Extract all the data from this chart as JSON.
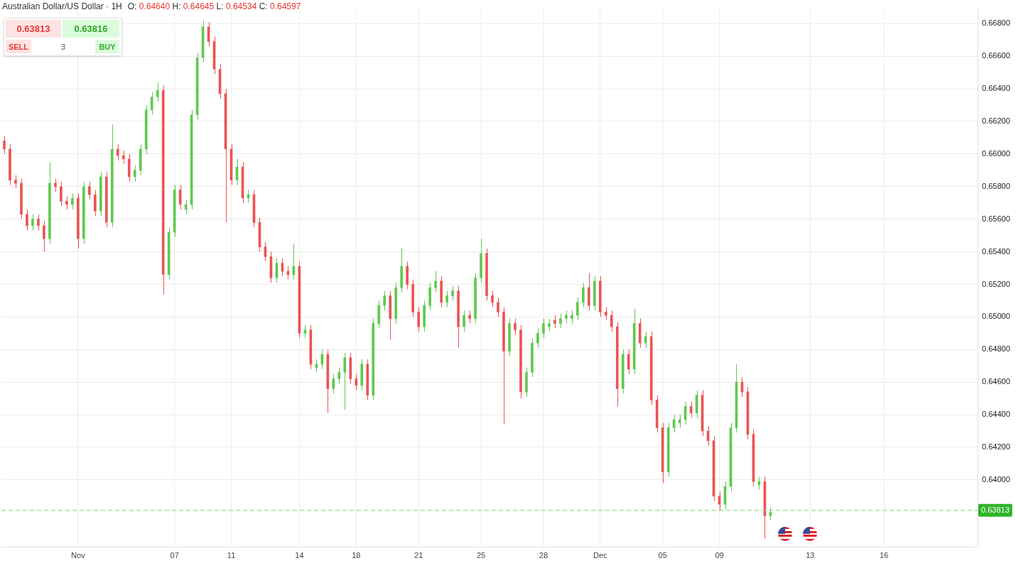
{
  "chart_data": {
    "type": "candlestick",
    "title": "Australian Dollar/US Dollar · 1H",
    "subtitle": "O: 0.64640 H: 0.64645 L: 0.64534 C: 0.64597",
    "annotations": [
      "0.63813",
      "0.63816",
      "SELL",
      "3",
      "BUY"
    ],
    "categories": [
      null,
      null,
      null,
      null,
      null,
      null,
      null,
      null,
      null,
      null,
      null,
      null,
      null,
      "Nov",
      null,
      null,
      null,
      null,
      null,
      null,
      null,
      null,
      null,
      null,
      null,
      null,
      null,
      null,
      null,
      null,
      "07",
      null,
      null,
      null,
      null,
      null,
      null,
      null,
      null,
      null,
      "11",
      null,
      null,
      null,
      null,
      null,
      null,
      null,
      null,
      null,
      null,
      null,
      "14",
      null,
      null,
      null,
      null,
      null,
      null,
      null,
      null,
      null,
      "18",
      null,
      null,
      null,
      null,
      null,
      null,
      null,
      null,
      null,
      null,
      "21",
      null,
      null,
      null,
      null,
      null,
      null,
      null,
      null,
      null,
      null,
      "25",
      null,
      null,
      null,
      null,
      null,
      null,
      null,
      null,
      null,
      null,
      "28",
      null,
      null,
      null,
      null,
      null,
      null,
      null,
      null,
      null,
      "Dec",
      null,
      null,
      null,
      null,
      null,
      null,
      null,
      null,
      null,
      null,
      "05",
      null,
      null,
      null,
      null,
      null,
      null,
      null,
      null,
      null,
      "09",
      null,
      null,
      null,
      null,
      null,
      null,
      null,
      null,
      null,
      null,
      null,
      null,
      null,
      null,
      null,
      "13",
      null,
      null,
      null,
      null,
      null,
      null,
      null,
      null,
      null,
      null,
      null,
      null,
      "16",
      null,
      null,
      null,
      null,
      null,
      null,
      null,
      null,
      null,
      null,
      null,
      null,
      null,
      null,
      null,
      null
    ],
    "ohlc": [
      [
        0.6608,
        0.6611,
        0.66,
        0.6603
      ],
      [
        0.6603,
        0.6606,
        0.6581,
        0.6584
      ],
      [
        0.6584,
        0.6587,
        0.6579,
        0.6582
      ],
      [
        0.6582,
        0.6585,
        0.656,
        0.6563
      ],
      [
        0.6563,
        0.6566,
        0.6553,
        0.6556
      ],
      [
        0.6556,
        0.6563,
        0.6553,
        0.656
      ],
      [
        0.656,
        0.6563,
        0.6553,
        0.6556
      ],
      [
        0.6556,
        0.6559,
        0.654,
        0.6548
      ],
      [
        0.6548,
        0.6595,
        0.6545,
        0.6582
      ],
      [
        0.6582,
        0.6585,
        0.6577,
        0.658
      ],
      [
        0.658,
        0.6583,
        0.6568,
        0.6571
      ],
      [
        0.6571,
        0.6574,
        0.6566,
        0.6569
      ],
      [
        0.6569,
        0.6576,
        0.6566,
        0.6573
      ],
      [
        0.6573,
        0.6576,
        0.6542,
        0.6548
      ],
      [
        0.6548,
        0.6583,
        0.6545,
        0.658
      ],
      [
        0.658,
        0.6583,
        0.6572,
        0.6575
      ],
      [
        0.6575,
        0.6578,
        0.6562,
        0.6565
      ],
      [
        0.6565,
        0.6589,
        0.6562,
        0.6586
      ],
      [
        0.6586,
        0.6589,
        0.6555,
        0.6558
      ],
      [
        0.6558,
        0.6618,
        0.6555,
        0.6603
      ],
      [
        0.6603,
        0.6606,
        0.6596,
        0.6599
      ],
      [
        0.6599,
        0.6602,
        0.6594,
        0.6597
      ],
      [
        0.6597,
        0.66,
        0.6583,
        0.6586
      ],
      [
        0.6586,
        0.6593,
        0.6583,
        0.659
      ],
      [
        0.659,
        0.6606,
        0.6587,
        0.6603
      ],
      [
        0.6603,
        0.663,
        0.66,
        0.6627
      ],
      [
        0.6627,
        0.6638,
        0.6624,
        0.6635
      ],
      [
        0.6635,
        0.6644,
        0.6632,
        0.6639
      ],
      [
        0.6639,
        0.6642,
        0.6514,
        0.6526
      ],
      [
        0.6526,
        0.6555,
        0.6523,
        0.6552
      ],
      [
        0.6552,
        0.6581,
        0.6549,
        0.6578
      ],
      [
        0.6578,
        0.6581,
        0.6566,
        0.6569
      ],
      [
        0.6566,
        0.6572,
        0.6563,
        0.6569
      ],
      [
        0.6569,
        0.6627,
        0.6566,
        0.6624
      ],
      [
        0.6624,
        0.6662,
        0.6621,
        0.6659
      ],
      [
        0.6659,
        0.6682,
        0.6656,
        0.6678
      ],
      [
        0.6678,
        0.6681,
        0.6666,
        0.6669
      ],
      [
        0.6669,
        0.6672,
        0.6649,
        0.6652
      ],
      [
        0.6652,
        0.6655,
        0.6634,
        0.6637
      ],
      [
        0.6637,
        0.664,
        0.6558,
        0.6603
      ],
      [
        0.6603,
        0.6606,
        0.6581,
        0.6584
      ],
      [
        0.6584,
        0.6597,
        0.6581,
        0.6592
      ],
      [
        0.6592,
        0.6595,
        0.657,
        0.6573
      ],
      [
        0.6573,
        0.6578,
        0.657,
        0.6575
      ],
      [
        0.6575,
        0.6578,
        0.6555,
        0.6558
      ],
      [
        0.6558,
        0.6561,
        0.654,
        0.6543
      ],
      [
        0.6543,
        0.6546,
        0.6534,
        0.6537
      ],
      [
        0.6537,
        0.654,
        0.6521,
        0.6524
      ],
      [
        0.6524,
        0.6536,
        0.6521,
        0.6533
      ],
      [
        0.6533,
        0.6536,
        0.6525,
        0.6528
      ],
      [
        0.6528,
        0.6531,
        0.6523,
        0.6526
      ],
      [
        0.6526,
        0.6545,
        0.6523,
        0.6531
      ],
      [
        0.6531,
        0.6534,
        0.6487,
        0.649
      ],
      [
        0.649,
        0.6495,
        0.6487,
        0.6492
      ],
      [
        0.6492,
        0.6495,
        0.6468,
        0.6471
      ],
      [
        0.6469,
        0.6474,
        0.6466,
        0.6471
      ],
      [
        0.6471,
        0.648,
        0.6468,
        0.6477
      ],
      [
        0.6477,
        0.648,
        0.6441,
        0.6456
      ],
      [
        0.6456,
        0.6465,
        0.6453,
        0.6462
      ],
      [
        0.6462,
        0.6469,
        0.6459,
        0.6466
      ],
      [
        0.6466,
        0.6478,
        0.6443,
        0.6475
      ],
      [
        0.6475,
        0.6478,
        0.6459,
        0.6462
      ],
      [
        0.6462,
        0.6465,
        0.6455,
        0.6458
      ],
      [
        0.6458,
        0.6474,
        0.6455,
        0.6471
      ],
      [
        0.6471,
        0.6474,
        0.6449,
        0.6452
      ],
      [
        0.6452,
        0.6499,
        0.6449,
        0.6496
      ],
      [
        0.6496,
        0.651,
        0.6493,
        0.6507
      ],
      [
        0.6507,
        0.6516,
        0.6504,
        0.6513
      ],
      [
        0.6513,
        0.6516,
        0.6486,
        0.6499
      ],
      [
        0.6499,
        0.6521,
        0.6496,
        0.6518
      ],
      [
        0.6518,
        0.6542,
        0.6515,
        0.6531
      ],
      [
        0.6531,
        0.6534,
        0.6517,
        0.652
      ],
      [
        0.652,
        0.6523,
        0.65,
        0.6503
      ],
      [
        0.6503,
        0.6506,
        0.6491,
        0.6494
      ],
      [
        0.6494,
        0.651,
        0.6491,
        0.6507
      ],
      [
        0.6507,
        0.6521,
        0.6504,
        0.6518
      ],
      [
        0.6518,
        0.6528,
        0.6515,
        0.6522
      ],
      [
        0.6522,
        0.6525,
        0.6506,
        0.6509
      ],
      [
        0.6509,
        0.6516,
        0.6506,
        0.6513
      ],
      [
        0.6513,
        0.6519,
        0.651,
        0.6516
      ],
      [
        0.6516,
        0.6519,
        0.6481,
        0.6494
      ],
      [
        0.6494,
        0.6504,
        0.6491,
        0.6501
      ],
      [
        0.6501,
        0.6504,
        0.6496,
        0.6499
      ],
      [
        0.6499,
        0.6527,
        0.6496,
        0.6524
      ],
      [
        0.6524,
        0.6548,
        0.6521,
        0.6539
      ],
      [
        0.6539,
        0.6542,
        0.651,
        0.6513
      ],
      [
        0.6513,
        0.6516,
        0.6506,
        0.6509
      ],
      [
        0.6509,
        0.6512,
        0.65,
        0.6503
      ],
      [
        0.6503,
        0.6506,
        0.6434,
        0.6479
      ],
      [
        0.6479,
        0.6499,
        0.6476,
        0.6496
      ],
      [
        0.6496,
        0.6499,
        0.6489,
        0.6492
      ],
      [
        0.6492,
        0.6495,
        0.645,
        0.6454
      ],
      [
        0.6454,
        0.6469,
        0.6451,
        0.6466
      ],
      [
        0.6466,
        0.6487,
        0.6463,
        0.6484
      ],
      [
        0.6484,
        0.6493,
        0.6481,
        0.649
      ],
      [
        0.649,
        0.6499,
        0.6487,
        0.6496
      ],
      [
        0.6494,
        0.6499,
        0.6491,
        0.6496
      ],
      [
        0.6498,
        0.6501,
        0.6493,
        0.6496
      ],
      [
        0.6496,
        0.6502,
        0.6493,
        0.6499
      ],
      [
        0.6499,
        0.6504,
        0.6496,
        0.6501
      ],
      [
        0.6499,
        0.6504,
        0.6496,
        0.6501
      ],
      [
        0.6501,
        0.6512,
        0.6498,
        0.6509
      ],
      [
        0.6509,
        0.6521,
        0.6506,
        0.6518
      ],
      [
        0.6518,
        0.6527,
        0.6504,
        0.6507
      ],
      [
        0.6507,
        0.6525,
        0.6504,
        0.6522
      ],
      [
        0.6522,
        0.6525,
        0.65,
        0.6503
      ],
      [
        0.6503,
        0.6506,
        0.6498,
        0.6501
      ],
      [
        0.6501,
        0.6504,
        0.6491,
        0.6494
      ],
      [
        0.6494,
        0.6497,
        0.6445,
        0.6456
      ],
      [
        0.6456,
        0.648,
        0.6453,
        0.6477
      ],
      [
        0.6477,
        0.648,
        0.6465,
        0.6468
      ],
      [
        0.6468,
        0.6505,
        0.6465,
        0.6496
      ],
      [
        0.6496,
        0.6499,
        0.6481,
        0.6484
      ],
      [
        0.6484,
        0.6491,
        0.6481,
        0.6488
      ],
      [
        0.6488,
        0.6491,
        0.6446,
        0.6449
      ],
      [
        0.6449,
        0.6452,
        0.6429,
        0.6432
      ],
      [
        0.6432,
        0.6435,
        0.6398,
        0.6405
      ],
      [
        0.6405,
        0.6435,
        0.6402,
        0.6432
      ],
      [
        0.6432,
        0.644,
        0.6429,
        0.6437
      ],
      [
        0.6435,
        0.644,
        0.6432,
        0.6437
      ],
      [
        0.6437,
        0.6448,
        0.6434,
        0.6445
      ],
      [
        0.6445,
        0.6448,
        0.6438,
        0.6441
      ],
      [
        0.6441,
        0.6455,
        0.6438,
        0.6452
      ],
      [
        0.6452,
        0.6455,
        0.6427,
        0.643
      ],
      [
        0.643,
        0.6433,
        0.6421,
        0.6424
      ],
      [
        0.6424,
        0.6427,
        0.6387,
        0.639
      ],
      [
        0.639,
        0.6393,
        0.6381,
        0.6385
      ],
      [
        0.6385,
        0.6399,
        0.6382,
        0.6396
      ],
      [
        0.6396,
        0.6435,
        0.6393,
        0.6432
      ],
      [
        0.6432,
        0.6471,
        0.6429,
        0.646
      ],
      [
        0.646,
        0.6463,
        0.6451,
        0.6454
      ],
      [
        0.6454,
        0.6457,
        0.6425,
        0.6428
      ],
      [
        0.6428,
        0.6431,
        0.6396,
        0.6399
      ],
      [
        0.6397,
        0.6402,
        0.6394,
        0.6399
      ],
      [
        0.6399,
        0.6402,
        0.6364,
        0.6378
      ],
      [
        0.6378,
        0.6383,
        0.6375,
        0.638
      ],
      null,
      null,
      null,
      null,
      null,
      null,
      null,
      null,
      null,
      null,
      null,
      null,
      null,
      null,
      null,
      null,
      null,
      null,
      null,
      null,
      null,
      null,
      null,
      null,
      null,
      null,
      null,
      null,
      null,
      null,
      null,
      null,
      null,
      null,
      null,
      null
    ],
    "colors": [
      "#eb5454",
      "#eb5454",
      "#eb5454",
      "#eb5454",
      "#eb5454",
      "#5fc94f",
      "#eb5454",
      "#eb5454",
      "#5fc94f",
      "#eb5454",
      "#eb5454",
      "#eb5454",
      "#5fc94f",
      "#eb5454",
      "#5fc94f",
      "#eb5454",
      "#eb5454",
      "#5fc94f",
      "#eb5454",
      "#5fc94f",
      "#eb5454",
      "#eb5454",
      "#eb5454",
      "#5fc94f",
      "#5fc94f",
      "#5fc94f",
      "#5fc94f",
      "#5fc94f",
      "#eb5454",
      "#5fc94f",
      "#5fc94f",
      "#eb5454",
      "#5fc94f",
      "#5fc94f",
      "#5fc94f",
      "#5fc94f",
      "#eb5454",
      "#eb5454",
      "#eb5454",
      "#eb5454",
      "#eb5454",
      "#5fc94f",
      "#eb5454",
      "#5fc94f",
      "#eb5454",
      "#eb5454",
      "#eb5454",
      "#eb5454",
      "#5fc94f",
      "#eb5454",
      "#eb5454",
      "#5fc94f",
      "#eb5454",
      "#5fc94f",
      "#eb5454",
      "#5fc94f",
      "#5fc94f",
      "#eb5454",
      "#5fc94f",
      "#5fc94f",
      "#5fc94f",
      "#eb5454",
      "#eb5454",
      "#5fc94f",
      "#eb5454",
      "#5fc94f",
      "#5fc94f",
      "#5fc94f",
      "#eb5454",
      "#5fc94f",
      "#5fc94f",
      "#eb5454",
      "#eb5454",
      "#eb5454",
      "#5fc94f",
      "#5fc94f",
      "#5fc94f",
      "#eb5454",
      "#5fc94f",
      "#5fc94f",
      "#eb5454",
      "#5fc94f",
      "#eb5454",
      "#5fc94f",
      "#5fc94f",
      "#eb5454",
      "#eb5454",
      "#eb5454",
      "#eb5454",
      "#5fc94f",
      "#eb5454",
      "#eb5454",
      "#5fc94f",
      "#5fc94f",
      "#5fc94f",
      "#5fc94f",
      "#5fc94f",
      "#eb5454",
      "#5fc94f",
      "#5fc94f",
      "#5fc94f",
      "#5fc94f",
      "#5fc94f",
      "#eb5454",
      "#5fc94f",
      "#eb5454",
      "#eb5454",
      "#eb5454",
      "#eb5454",
      "#5fc94f",
      "#eb5454",
      "#5fc94f",
      "#eb5454",
      "#5fc94f",
      "#eb5454",
      "#eb5454",
      "#eb5454",
      "#5fc94f",
      "#5fc94f",
      "#5fc94f",
      "#5fc94f",
      "#eb5454",
      "#5fc94f",
      "#eb5454",
      "#eb5454",
      "#eb5454",
      "#eb5454",
      "#5fc94f",
      "#5fc94f",
      "#5fc94f",
      "#eb5454",
      "#eb5454",
      "#eb5454",
      "#5fc94f",
      "#eb5454",
      "#5fc94f",
      null,
      null,
      null,
      null,
      null,
      null,
      null,
      null,
      null,
      null,
      null,
      null,
      null,
      null,
      null,
      null,
      null,
      null,
      null,
      null,
      null,
      null,
      null,
      null,
      null,
      null,
      null,
      null,
      null,
      null,
      null,
      null,
      null,
      null,
      null,
      null
    ],
    "ylim": [
      0.6359,
      0.6689
    ],
    "yticks": [
      {
        "value": 0.64,
        "label": "0.64000"
      },
      {
        "value": 0.642,
        "label": "0.64200"
      },
      {
        "value": 0.644,
        "label": "0.64400"
      },
      {
        "value": 0.646,
        "label": "0.64600"
      },
      {
        "value": 0.648,
        "label": "0.64800"
      },
      {
        "value": 0.65,
        "label": "0.65000"
      },
      {
        "value": 0.652,
        "label": "0.65200"
      },
      {
        "value": 0.654,
        "label": "0.65400"
      },
      {
        "value": 0.656,
        "label": "0.65600"
      },
      {
        "value": 0.658,
        "label": "0.65800"
      },
      {
        "value": 0.66,
        "label": "0.66000"
      },
      {
        "value": 0.662,
        "label": "0.66200"
      },
      {
        "value": 0.664,
        "label": "0.66400"
      },
      {
        "value": 0.666,
        "label": "0.66600"
      },
      {
        "value": 0.668,
        "label": "0.66800"
      }
    ],
    "ref_lines": [
      {
        "axis": "y",
        "value": 0.63813,
        "label": "0.63813",
        "color": "#8edb83",
        "line_style": "dashed"
      }
    ],
    "grid": true
  }
}
